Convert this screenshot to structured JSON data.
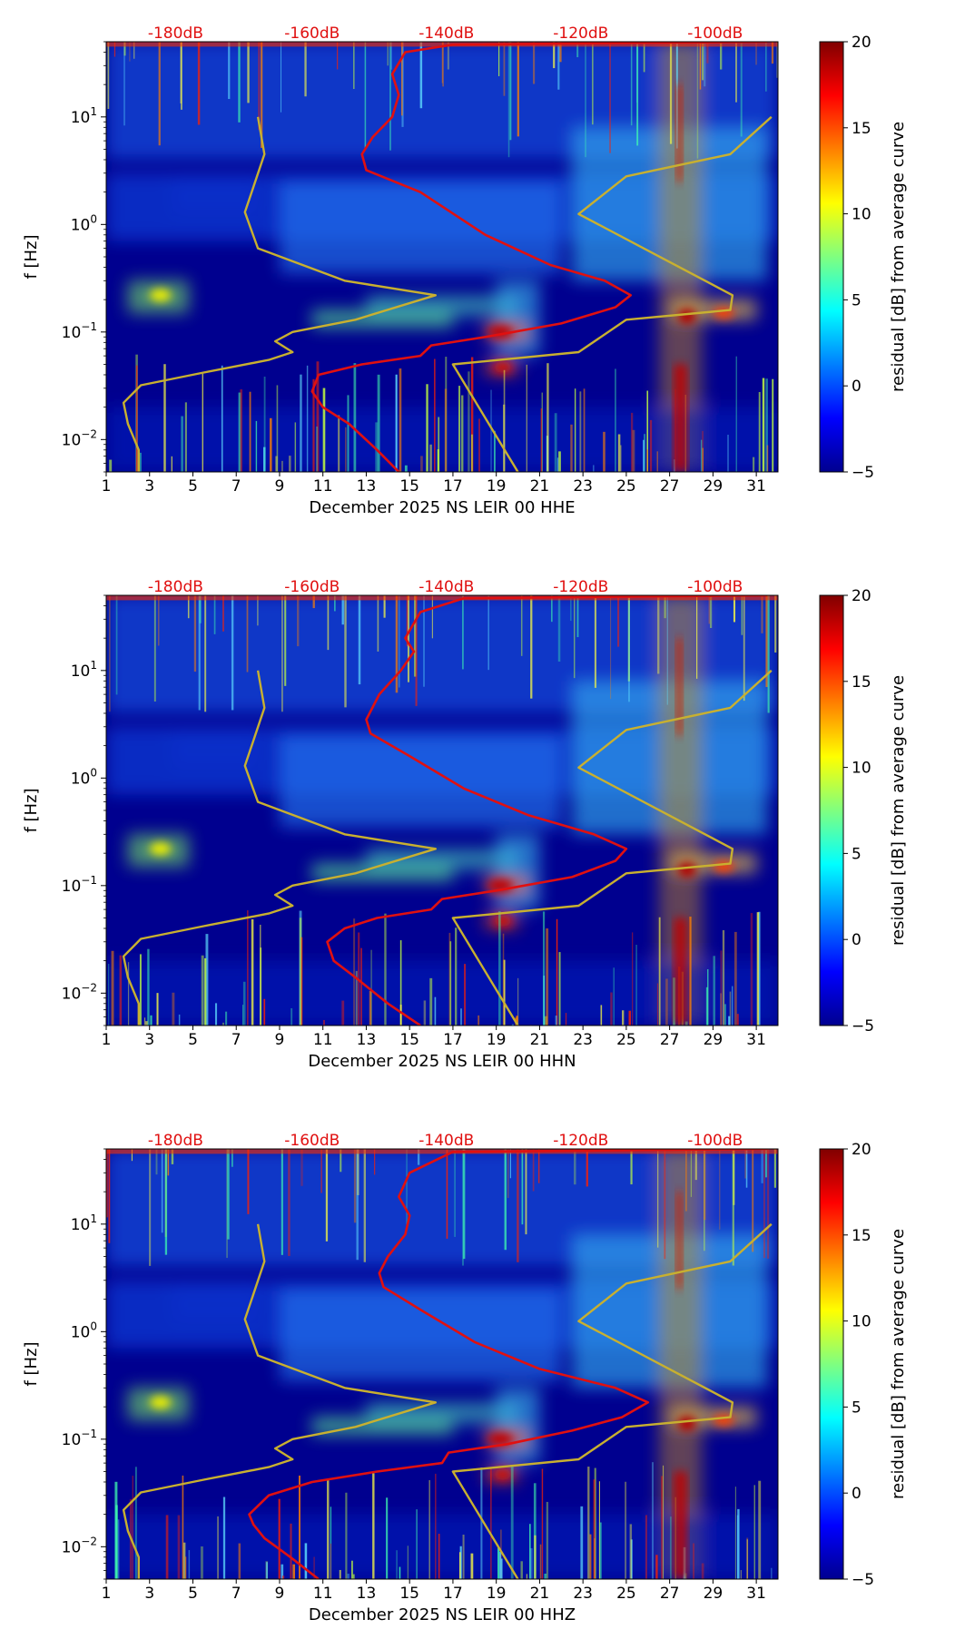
{
  "figure": {
    "panel_count": 3,
    "shared_colorbar": {
      "label": "residual [dB] from average curve",
      "ticks": [
        -5,
        0,
        5,
        10,
        15,
        20
      ],
      "range": [
        -5,
        20
      ],
      "colormap": "jet"
    },
    "colors": {
      "model_curves": "#c8b030",
      "psd_curve": "#e01010",
      "top_axis_labels": "#e01010",
      "background_low": "#00008f"
    }
  },
  "chart_data": [
    {
      "type": "heatmap",
      "title": "",
      "xlabel": "December 2025 NS LEIR 00 HHE",
      "ylabel": "f [Hz]",
      "yscale": "log",
      "x_ticks": [
        "1",
        "3",
        "5",
        "7",
        "9",
        "11",
        "13",
        "15",
        "17",
        "19",
        "21",
        "23",
        "25",
        "27",
        "29",
        "31"
      ],
      "y_ticks": [
        "10^-2",
        "10^-1",
        "10^0",
        "10^1"
      ],
      "xlim": [
        1,
        32
      ],
      "ylim": [
        0.005,
        50
      ],
      "top_axis_labels": [
        "-180dB",
        "-160dB",
        "-140dB",
        "-120dB",
        "-100dB"
      ],
      "colorbar": {
        "label": "residual [dB] from average curve",
        "ticks": [
          "20",
          "15",
          "10",
          "5",
          "0",
          "−5"
        ],
        "range": [
          -5,
          20
        ]
      },
      "grid": false,
      "series": [
        {
          "kind": "model-curve-low",
          "points": [
            [
              2.5,
              0.005
            ],
            [
              2.5,
              0.008
            ],
            [
              2.0,
              0.014
            ],
            [
              1.8,
              0.022
            ],
            [
              2.6,
              0.032
            ],
            [
              5.5,
              0.042
            ],
            [
              8.5,
              0.055
            ],
            [
              9.6,
              0.065
            ],
            [
              8.8,
              0.082
            ],
            [
              9.6,
              0.1
            ],
            [
              12.5,
              0.13
            ],
            [
              16.2,
              0.22
            ],
            [
              12.0,
              0.3
            ],
            [
              8.0,
              0.6
            ],
            [
              7.4,
              1.3
            ],
            [
              8.3,
              4.5
            ],
            [
              8.0,
              10
            ]
          ]
        },
        {
          "kind": "model-curve-high",
          "points": [
            [
              20.0,
              0.005
            ],
            [
              17.0,
              0.05
            ],
            [
              22.8,
              0.065
            ],
            [
              25.0,
              0.13
            ],
            [
              29.8,
              0.16
            ],
            [
              29.9,
              0.22
            ],
            [
              22.8,
              1.25
            ],
            [
              25.0,
              2.8
            ],
            [
              29.8,
              4.5
            ],
            [
              31.7,
              10
            ]
          ]
        },
        {
          "kind": "psd-curve",
          "points": [
            [
              14.5,
              0.005
            ],
            [
              13.5,
              0.008
            ],
            [
              12.2,
              0.014
            ],
            [
              11.0,
              0.02
            ],
            [
              10.5,
              0.028
            ],
            [
              10.8,
              0.04
            ],
            [
              12.8,
              0.05
            ],
            [
              15.5,
              0.06
            ],
            [
              16.0,
              0.075
            ],
            [
              18.5,
              0.09
            ],
            [
              22.0,
              0.12
            ],
            [
              24.5,
              0.17
            ],
            [
              25.2,
              0.22
            ],
            [
              24.0,
              0.3
            ],
            [
              21.5,
              0.42
            ],
            [
              18.5,
              0.8
            ],
            [
              15.5,
              2.0
            ],
            [
              13.0,
              3.2
            ],
            [
              12.8,
              4.5
            ],
            [
              13.3,
              6.5
            ],
            [
              14.2,
              10
            ],
            [
              14.5,
              16
            ],
            [
              14.2,
              25
            ],
            [
              14.8,
              40
            ],
            [
              17.0,
              47
            ],
            [
              31.5,
              50
            ]
          ]
        }
      ]
    },
    {
      "type": "heatmap",
      "title": "",
      "xlabel": "December 2025 NS LEIR 00 HHN",
      "ylabel": "f [Hz]",
      "yscale": "log",
      "x_ticks": [
        "1",
        "3",
        "5",
        "7",
        "9",
        "11",
        "13",
        "15",
        "17",
        "19",
        "21",
        "23",
        "25",
        "27",
        "29",
        "31"
      ],
      "y_ticks": [
        "10^-2",
        "10^-1",
        "10^0",
        "10^1"
      ],
      "xlim": [
        1,
        32
      ],
      "ylim": [
        0.005,
        50
      ],
      "top_axis_labels": [
        "-180dB",
        "-160dB",
        "-140dB",
        "-120dB",
        "-100dB"
      ],
      "colorbar": {
        "label": "residual [dB] from average curve",
        "ticks": [
          "20",
          "15",
          "10",
          "5",
          "0",
          "−5"
        ],
        "range": [
          -5,
          20
        ]
      },
      "grid": false,
      "series": [
        {
          "kind": "model-curve-low",
          "points": [
            [
              2.5,
              0.005
            ],
            [
              2.5,
              0.008
            ],
            [
              2.0,
              0.014
            ],
            [
              1.8,
              0.022
            ],
            [
              2.6,
              0.032
            ],
            [
              5.5,
              0.042
            ],
            [
              8.5,
              0.055
            ],
            [
              9.6,
              0.065
            ],
            [
              8.8,
              0.082
            ],
            [
              9.6,
              0.1
            ],
            [
              12.5,
              0.13
            ],
            [
              16.2,
              0.22
            ],
            [
              12.0,
              0.3
            ],
            [
              8.0,
              0.6
            ],
            [
              7.4,
              1.3
            ],
            [
              8.3,
              4.5
            ],
            [
              8.0,
              10
            ]
          ]
        },
        {
          "kind": "model-curve-high",
          "points": [
            [
              20.0,
              0.005
            ],
            [
              17.0,
              0.05
            ],
            [
              22.8,
              0.065
            ],
            [
              25.0,
              0.13
            ],
            [
              29.8,
              0.16
            ],
            [
              29.9,
              0.22
            ],
            [
              22.8,
              1.25
            ],
            [
              25.0,
              2.8
            ],
            [
              29.8,
              4.5
            ],
            [
              31.7,
              10
            ]
          ]
        },
        {
          "kind": "psd-curve",
          "points": [
            [
              15.5,
              0.005
            ],
            [
              14.0,
              0.008
            ],
            [
              12.5,
              0.014
            ],
            [
              11.5,
              0.02
            ],
            [
              11.2,
              0.03
            ],
            [
              12.0,
              0.04
            ],
            [
              13.5,
              0.05
            ],
            [
              16.0,
              0.06
            ],
            [
              16.5,
              0.075
            ],
            [
              19.0,
              0.09
            ],
            [
              22.5,
              0.12
            ],
            [
              24.5,
              0.17
            ],
            [
              25.0,
              0.22
            ],
            [
              23.5,
              0.3
            ],
            [
              20.5,
              0.45
            ],
            [
              17.5,
              0.8
            ],
            [
              15.0,
              1.6
            ],
            [
              13.2,
              2.6
            ],
            [
              13.0,
              3.5
            ],
            [
              13.6,
              6.0
            ],
            [
              14.6,
              10
            ],
            [
              15.2,
              15
            ],
            [
              14.8,
              20
            ],
            [
              15.5,
              35
            ],
            [
              17.5,
              47
            ],
            [
              31.5,
              50
            ]
          ]
        }
      ]
    },
    {
      "type": "heatmap",
      "title": "",
      "xlabel": "December 2025 NS LEIR 00 HHZ",
      "ylabel": "f [Hz]",
      "yscale": "log",
      "x_ticks": [
        "1",
        "3",
        "5",
        "7",
        "9",
        "11",
        "13",
        "15",
        "17",
        "19",
        "21",
        "23",
        "25",
        "27",
        "29",
        "31"
      ],
      "y_ticks": [
        "10^-2",
        "10^-1",
        "10^0",
        "10^1"
      ],
      "xlim": [
        1,
        32
      ],
      "ylim": [
        0.005,
        50
      ],
      "top_axis_labels": [
        "-180dB",
        "-160dB",
        "-140dB",
        "-120dB",
        "-100dB"
      ],
      "colorbar": {
        "label": "residual [dB] from average curve",
        "ticks": [
          "20",
          "15",
          "10",
          "5",
          "0",
          "−5"
        ],
        "range": [
          -5,
          20
        ]
      },
      "grid": false,
      "series": [
        {
          "kind": "model-curve-low",
          "points": [
            [
              2.5,
              0.005
            ],
            [
              2.5,
              0.008
            ],
            [
              2.0,
              0.014
            ],
            [
              1.8,
              0.022
            ],
            [
              2.6,
              0.032
            ],
            [
              5.5,
              0.042
            ],
            [
              8.5,
              0.055
            ],
            [
              9.6,
              0.065
            ],
            [
              8.8,
              0.082
            ],
            [
              9.6,
              0.1
            ],
            [
              12.5,
              0.13
            ],
            [
              16.2,
              0.22
            ],
            [
              12.0,
              0.3
            ],
            [
              8.0,
              0.6
            ],
            [
              7.4,
              1.3
            ],
            [
              8.3,
              4.5
            ],
            [
              8.0,
              10
            ]
          ]
        },
        {
          "kind": "model-curve-high",
          "points": [
            [
              20.0,
              0.005
            ],
            [
              17.0,
              0.05
            ],
            [
              22.8,
              0.065
            ],
            [
              25.0,
              0.13
            ],
            [
              29.8,
              0.16
            ],
            [
              29.9,
              0.22
            ],
            [
              22.8,
              1.25
            ],
            [
              25.0,
              2.8
            ],
            [
              29.8,
              4.5
            ],
            [
              31.7,
              10
            ]
          ]
        },
        {
          "kind": "psd-curve",
          "points": [
            [
              10.8,
              0.005
            ],
            [
              9.5,
              0.008
            ],
            [
              8.3,
              0.012
            ],
            [
              7.8,
              0.016
            ],
            [
              7.6,
              0.02
            ],
            [
              8.5,
              0.03
            ],
            [
              10.5,
              0.04
            ],
            [
              13.5,
              0.05
            ],
            [
              16.5,
              0.06
            ],
            [
              16.8,
              0.075
            ],
            [
              19.5,
              0.09
            ],
            [
              22.5,
              0.12
            ],
            [
              24.8,
              0.16
            ],
            [
              26.0,
              0.22
            ],
            [
              24.5,
              0.3
            ],
            [
              21.0,
              0.45
            ],
            [
              18.0,
              0.8
            ],
            [
              15.5,
              1.6
            ],
            [
              13.8,
              2.6
            ],
            [
              13.6,
              3.5
            ],
            [
              14.0,
              5.0
            ],
            [
              14.8,
              8.0
            ],
            [
              15.0,
              12
            ],
            [
              14.5,
              18
            ],
            [
              15.0,
              30
            ],
            [
              17.0,
              47
            ],
            [
              31.5,
              50
            ]
          ]
        }
      ]
    }
  ]
}
